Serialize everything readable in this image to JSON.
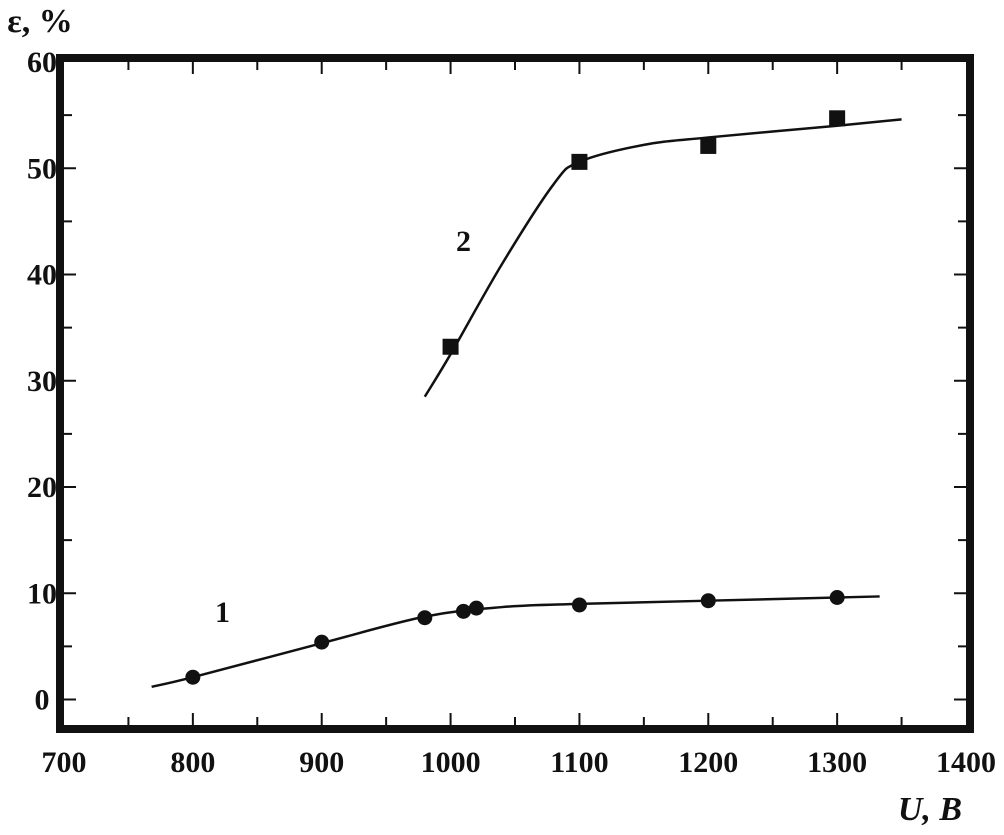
{
  "chart_data": {
    "type": "scatter",
    "xlabel": "U, В",
    "ylabel": "ε, %",
    "xlim": [
      700,
      1400
    ],
    "ylim": [
      -2.4,
      60
    ],
    "xticks": [
      700,
      800,
      900,
      1000,
      1100,
      1200,
      1300,
      1400
    ],
    "yticks": [
      0,
      10,
      20,
      30,
      40,
      50,
      60
    ],
    "grid": false,
    "series": [
      {
        "name": "1",
        "marker": "circle",
        "x": [
          800,
          900,
          980,
          1010,
          1020,
          1100,
          1200,
          1300
        ],
        "y": [
          2.1,
          5.4,
          7.7,
          8.3,
          8.6,
          8.9,
          9.3,
          9.6
        ],
        "fit": [
          [
            768,
            1.2
          ],
          [
            800,
            2.1
          ],
          [
            900,
            5.3
          ],
          [
            980,
            7.8
          ],
          [
            1040,
            8.7
          ],
          [
            1100,
            9.0
          ],
          [
            1200,
            9.3
          ],
          [
            1333,
            9.7
          ]
        ],
        "label_at": [
          823,
          7.3
        ]
      },
      {
        "name": "2",
        "marker": "square",
        "x": [
          1000,
          1100,
          1200,
          1300
        ],
        "y": [
          33.2,
          50.6,
          52.1,
          54.7
        ],
        "fit": [
          [
            980,
            28.5
          ],
          [
            1000,
            32.5
          ],
          [
            1040,
            41
          ],
          [
            1080,
            48.5
          ],
          [
            1100,
            50.6
          ],
          [
            1150,
            52.2
          ],
          [
            1200,
            52.9
          ],
          [
            1300,
            54.0
          ],
          [
            1350,
            54.6
          ]
        ],
        "label_at": [
          1010,
          42.2
        ]
      }
    ],
    "color": "#111111"
  }
}
